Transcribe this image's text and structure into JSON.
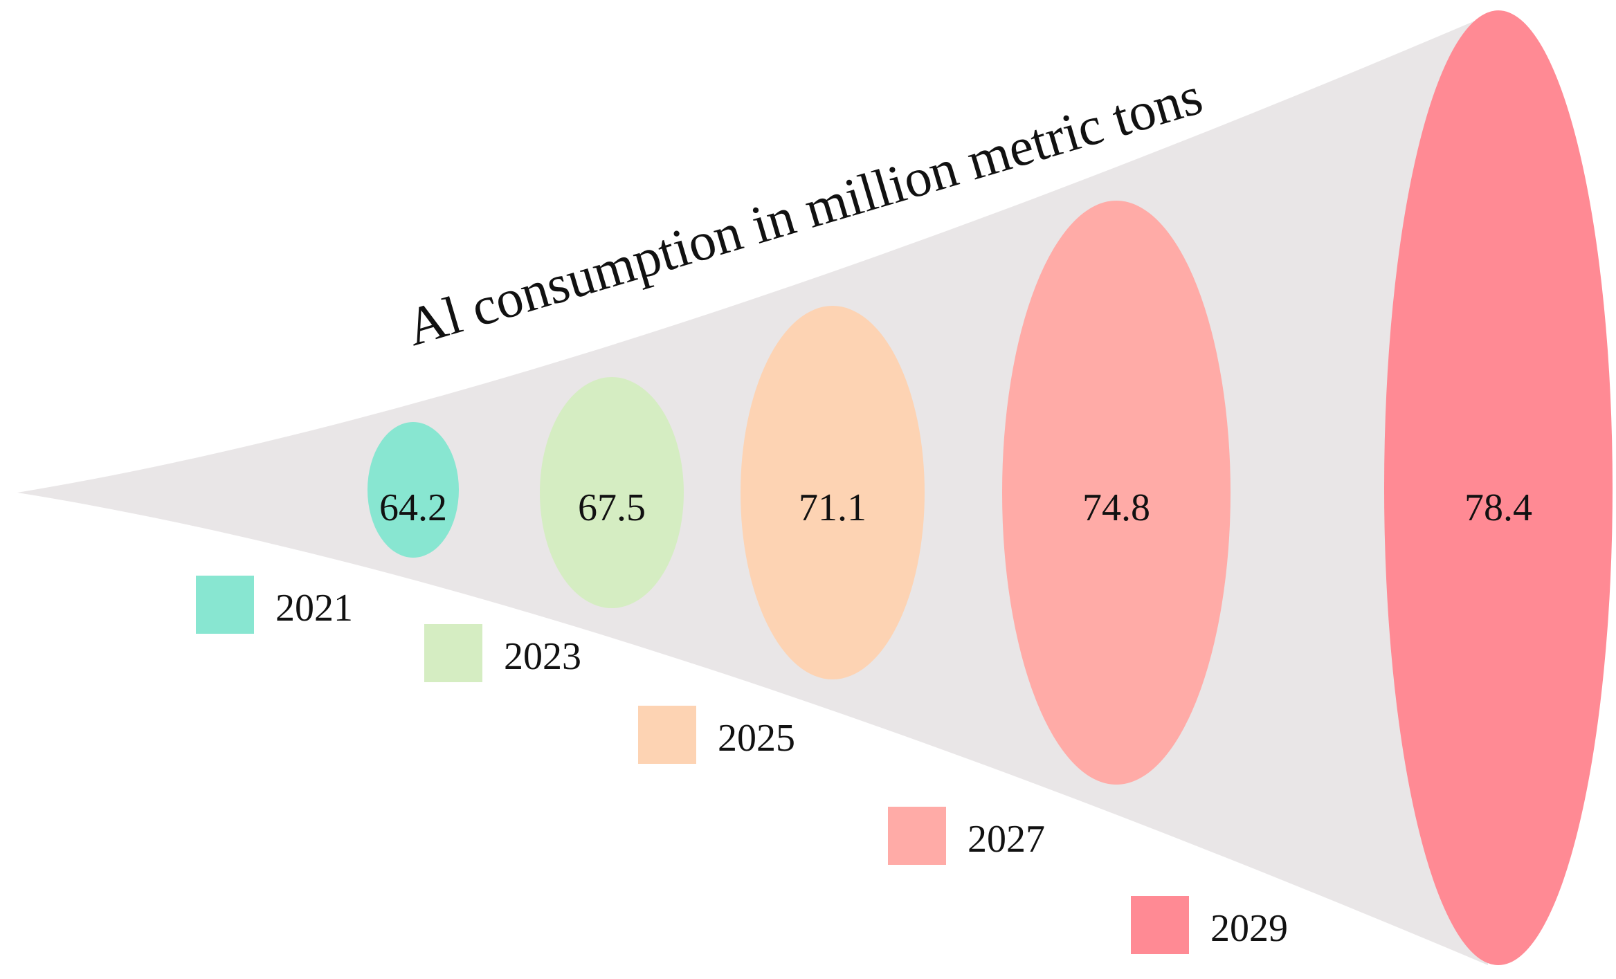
{
  "chart_data": {
    "type": "bubble-funnel",
    "title": "Al consumption in million metric tons",
    "unit": "million metric tons",
    "categories": [
      "2021",
      "2023",
      "2025",
      "2027",
      "2029"
    ],
    "values": [
      64.2,
      67.5,
      71.1,
      74.8,
      78.4
    ],
    "value_labels": [
      "64.2",
      "67.5",
      "71.1",
      "74.8",
      "78.4"
    ],
    "colors": [
      "#88e6d1",
      "#d5edc2",
      "#fdd3b3",
      "#ffaba7",
      "#ff8a94"
    ],
    "funnel_color": "#e9e6e7",
    "legend": [
      {
        "label": "2021",
        "color": "#88e6d1"
      },
      {
        "label": "2023",
        "color": "#d5edc2"
      },
      {
        "label": "2025",
        "color": "#fdd3b3"
      },
      {
        "label": "2027",
        "color": "#ffaba7"
      },
      {
        "label": "2029",
        "color": "#ff8a94"
      }
    ]
  }
}
